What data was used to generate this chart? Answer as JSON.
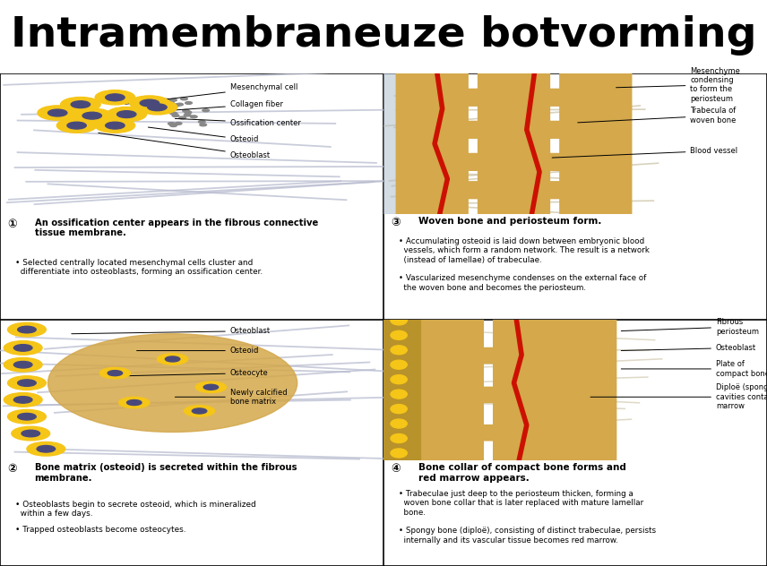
{
  "title": "Intramembraneuze botvorming",
  "title_fontsize": 34,
  "bg_color": "#ffffff",
  "panel1": {
    "number": "①",
    "heading": "An ossification center appears in the fibrous connective\ntissue membrane.",
    "bullets": [
      "• Selected centrally located mesenchymal cells cluster and\n  differentiate into osteoblasts, forming an ossification center."
    ],
    "labels": [
      [
        "Mesenchymal cell",
        [
          3.2,
          7.8
        ],
        [
          6.0,
          9.0
        ]
      ],
      [
        "Collagen fiber",
        [
          3.5,
          7.2
        ],
        [
          6.0,
          7.8
        ]
      ],
      [
        "Ossification center",
        [
          4.5,
          6.8
        ],
        [
          6.0,
          6.5
        ]
      ],
      [
        "Osteoid",
        [
          3.8,
          6.2
        ],
        [
          6.0,
          5.3
        ]
      ],
      [
        "Osteoblast",
        [
          2.5,
          5.8
        ],
        [
          6.0,
          4.2
        ]
      ]
    ],
    "image_bg": "#d8e8f2"
  },
  "panel2": {
    "number": "②",
    "heading": "Bone matrix (osteoid) is secreted within the fibrous\nmembrane.",
    "bullets": [
      "• Osteoblasts begin to secrete osteoid, which is mineralized\n  within a few days.",
      "• Trapped osteoblasts become osteocytes."
    ],
    "labels": [
      [
        "Osteoblast",
        [
          1.8,
          9.0
        ],
        [
          6.0,
          9.2
        ]
      ],
      [
        "Osteoid",
        [
          3.5,
          7.8
        ],
        [
          6.0,
          7.8
        ]
      ],
      [
        "Osteocyte",
        [
          3.2,
          6.0
        ],
        [
          6.0,
          6.2
        ]
      ],
      [
        "Newly calcified\nbone matrix",
        [
          4.5,
          4.5
        ],
        [
          6.0,
          4.5
        ]
      ]
    ],
    "image_bg": "#d8e8f2"
  },
  "panel3": {
    "number": "③",
    "heading": "Woven bone and periosteum form.",
    "bullets": [
      "• Accumulating osteoid is laid down between embryonic blood\n  vessels, which form a random network. The result is a network\n  (instead of lamellae) of trabeculae.",
      "• Vascularized mesenchyme condenses on the external face of\n  the woven bone and becomes the periosteum."
    ],
    "labels": [
      [
        "Mesenchyme\ncondensing\nto form the\nperiosteum",
        [
          9.0,
          9.0
        ],
        [
          12.0,
          9.2
        ]
      ],
      [
        "Trabecula of\nwoven bone",
        [
          7.5,
          6.5
        ],
        [
          12.0,
          7.0
        ]
      ],
      [
        "Blood vessel",
        [
          6.5,
          4.0
        ],
        [
          12.0,
          4.5
        ]
      ]
    ],
    "image_bg": "#f0e0a0"
  },
  "panel4": {
    "number": "④",
    "heading": "Bone collar of compact bone forms and\nred marrow appears.",
    "bullets": [
      "• Trabeculae just deep to the periosteum thicken, forming a\n  woven bone collar that is later replaced with mature lamellar\n  bone.",
      "• Spongy bone (diploë), consisting of distinct trabeculae, persists\n  internally and its vascular tissue becomes red marrow."
    ],
    "labels": [
      [
        "Fibrous\nperiosteum",
        [
          9.2,
          9.2
        ],
        [
          13.0,
          9.5
        ]
      ],
      [
        "Osteoblast",
        [
          9.2,
          7.8
        ],
        [
          13.0,
          8.0
        ]
      ],
      [
        "Plate of\ncompact bone",
        [
          9.2,
          6.5
        ],
        [
          13.0,
          6.5
        ]
      ],
      [
        "Diploë (spongy bone)\ncavities contain red\nmarrow",
        [
          8.0,
          4.5
        ],
        [
          13.0,
          4.5
        ]
      ]
    ],
    "image_bg": "#f0e0a0"
  }
}
